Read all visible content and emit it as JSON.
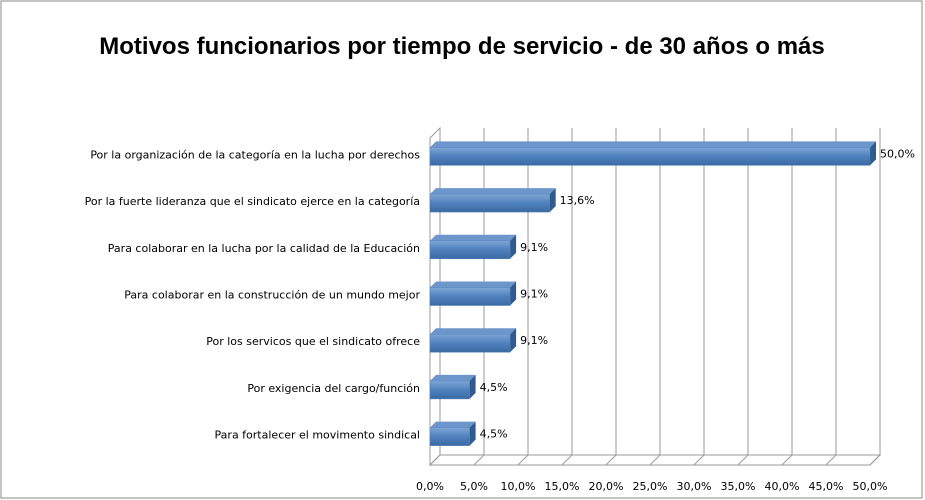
{
  "chart_data": {
    "type": "bar",
    "orientation": "horizontal",
    "title": "Motivos funcionarios por tiempo de servicio - de 30 años o más",
    "categories": [
      "Por la organización de la categoría en la lucha por derechos",
      "Por la fuerte lideranza que el sindicato ejerce en la categoría",
      "Para colaborar en la lucha por la calidad de la Educación",
      "Para colaborar en la construcción de un mundo mejor",
      "Por los servicos que el sindicato ofrece",
      "Por exigencia del cargo/función",
      "Para fortalecer el movimento sindical"
    ],
    "values": [
      50,
      13.6,
      9.1,
      9.1,
      9.1,
      4.5,
      4.5
    ],
    "value_labels": [
      "50,0%",
      "13,6%",
      "9,1%",
      "9,1%",
      "9,1%",
      "4,5%",
      "4,5%"
    ],
    "color": "#4f81bd",
    "xlim": [
      0,
      50
    ],
    "xticks": [
      {
        "value": 0,
        "label": "0,0%"
      },
      {
        "value": 5,
        "label": "5,0%"
      },
      {
        "value": 10,
        "label": "10,0%"
      },
      {
        "value": 15,
        "label": "15,0%"
      },
      {
        "value": 20,
        "label": "20,0%"
      },
      {
        "value": 25,
        "label": "25,0%"
      },
      {
        "value": 30,
        "label": "30,0%"
      },
      {
        "value": 35,
        "label": "35,0%"
      },
      {
        "value": 40,
        "label": "40,0%"
      },
      {
        "value": 45,
        "label": "45,0%"
      },
      {
        "value": 50,
        "label": "50,0%"
      }
    ],
    "grid": true
  }
}
